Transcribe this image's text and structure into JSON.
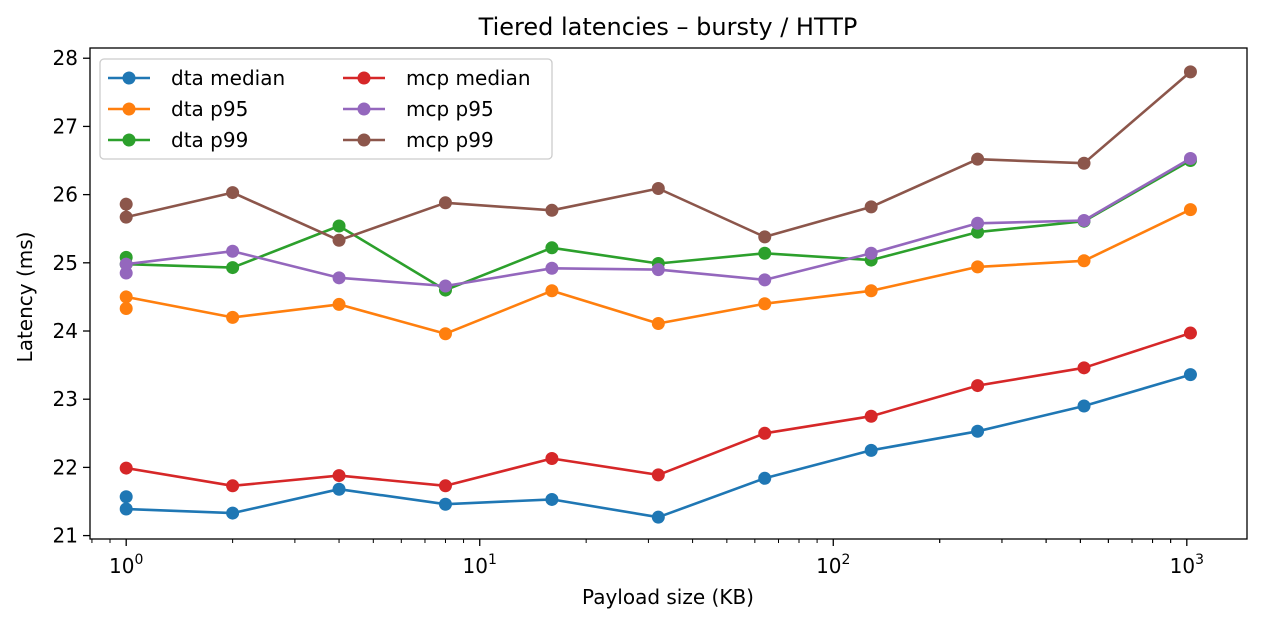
{
  "chart_data": {
    "type": "line",
    "title": "Tiered latencies – bursty / HTTP",
    "xlabel": "Payload size (KB)",
    "ylabel": "Latency (ms)",
    "xscale": "log",
    "xlim": [
      0.79,
      1480
    ],
    "ylim": [
      20.95,
      28.15
    ],
    "x_ticks": [
      {
        "value": 1,
        "base": "10",
        "exp": "0"
      },
      {
        "value": 10,
        "base": "10",
        "exp": "1"
      },
      {
        "value": 100,
        "base": "10",
        "exp": "2"
      },
      {
        "value": 1000,
        "base": "10",
        "exp": "3"
      }
    ],
    "y_ticks": [
      {
        "value": 21,
        "label": "21"
      },
      {
        "value": 22,
        "label": "22"
      },
      {
        "value": 23,
        "label": "23"
      },
      {
        "value": 24,
        "label": "24"
      },
      {
        "value": 25,
        "label": "25"
      },
      {
        "value": 26,
        "label": "26"
      },
      {
        "value": 27,
        "label": "27"
      },
      {
        "value": 28,
        "label": "28"
      }
    ],
    "legend": {
      "placement": "top-left",
      "columns": 2
    },
    "series": [
      {
        "name": "dta median",
        "color": "#1f77b4",
        "x": [
          1,
          1,
          2,
          4,
          8,
          16,
          32,
          64,
          128,
          256,
          512,
          1024
        ],
        "y": [
          21.57,
          21.39,
          21.33,
          21.68,
          21.46,
          21.53,
          21.27,
          21.84,
          22.25,
          22.53,
          22.9,
          23.36
        ]
      },
      {
        "name": "dta p95",
        "color": "#ff7f0e",
        "x": [
          1,
          1,
          2,
          4,
          8,
          16,
          32,
          64,
          128,
          256,
          512,
          1024
        ],
        "y": [
          24.33,
          24.5,
          24.2,
          24.39,
          23.96,
          24.59,
          24.11,
          24.4,
          24.59,
          24.94,
          25.03,
          25.78
        ]
      },
      {
        "name": "dta p99",
        "color": "#2ca02c",
        "x": [
          1,
          1,
          2,
          4,
          8,
          16,
          32,
          64,
          128,
          256,
          512,
          1024
        ],
        "y": [
          25.08,
          24.98,
          24.93,
          25.54,
          24.6,
          25.22,
          24.99,
          25.14,
          25.04,
          25.45,
          25.61,
          26.5
        ]
      },
      {
        "name": "mcp median",
        "color": "#d62728",
        "x": [
          1,
          2,
          4,
          8,
          16,
          32,
          64,
          128,
          256,
          512,
          1024
        ],
        "y": [
          21.99,
          21.73,
          21.88,
          21.73,
          22.13,
          21.89,
          22.5,
          22.75,
          23.2,
          23.46,
          23.97
        ]
      },
      {
        "name": "mcp p95",
        "color": "#9467bd",
        "x": [
          1,
          1,
          2,
          4,
          8,
          16,
          32,
          64,
          128,
          256,
          512,
          1024
        ],
        "y": [
          24.85,
          24.98,
          25.17,
          24.78,
          24.66,
          24.92,
          24.9,
          24.75,
          25.14,
          25.58,
          25.62,
          26.53
        ]
      },
      {
        "name": "mcp p99",
        "color": "#8c564b",
        "x": [
          1,
          1,
          2,
          4,
          8,
          16,
          32,
          64,
          128,
          256,
          512,
          1024
        ],
        "y": [
          25.86,
          25.67,
          26.03,
          25.33,
          25.88,
          25.77,
          26.09,
          25.38,
          25.82,
          26.52,
          26.46,
          27.8
        ]
      }
    ]
  }
}
